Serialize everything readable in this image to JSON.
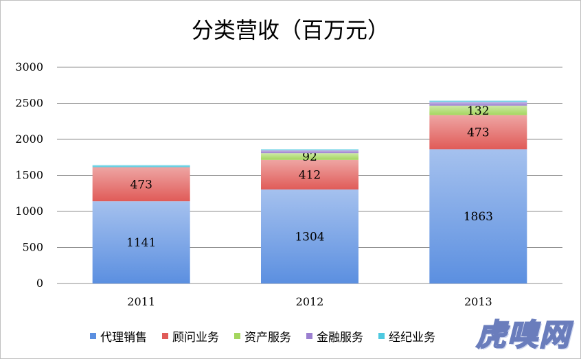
{
  "chart_data": {
    "type": "bar",
    "stacked": true,
    "title": "分类营收（百万元）",
    "categories": [
      "2011",
      "2012",
      "2013"
    ],
    "ylim": [
      0,
      3000
    ],
    "yticks": [
      "0",
      "500",
      "1000",
      "1500",
      "2000",
      "2500",
      "3000"
    ],
    "grid": true,
    "legend_position": "bottom",
    "series": [
      {
        "name": "代理销售",
        "values": [
          1141,
          1304,
          1863
        ],
        "labels": [
          "1141",
          "1304",
          "1863"
        ],
        "color": "#5b8fe0"
      },
      {
        "name": "顾问业务",
        "values": [
          473,
          412,
          473
        ],
        "labels": [
          "473",
          "412",
          "473"
        ],
        "color": "#e05b58"
      },
      {
        "name": "资产服务",
        "values": [
          0,
          92,
          132
        ],
        "labels": [
          "",
          "92",
          "132"
        ],
        "color": "#a4d65e"
      },
      {
        "name": "金融服务",
        "values": [
          0,
          40,
          50
        ],
        "labels": [
          "",
          "",
          ""
        ],
        "color": "#9b7fd0"
      },
      {
        "name": "经纪业务",
        "values": [
          30,
          15,
          20
        ],
        "labels": [
          "",
          "",
          ""
        ],
        "color": "#4ec9e0"
      }
    ]
  },
  "watermark": "虎嗅网"
}
